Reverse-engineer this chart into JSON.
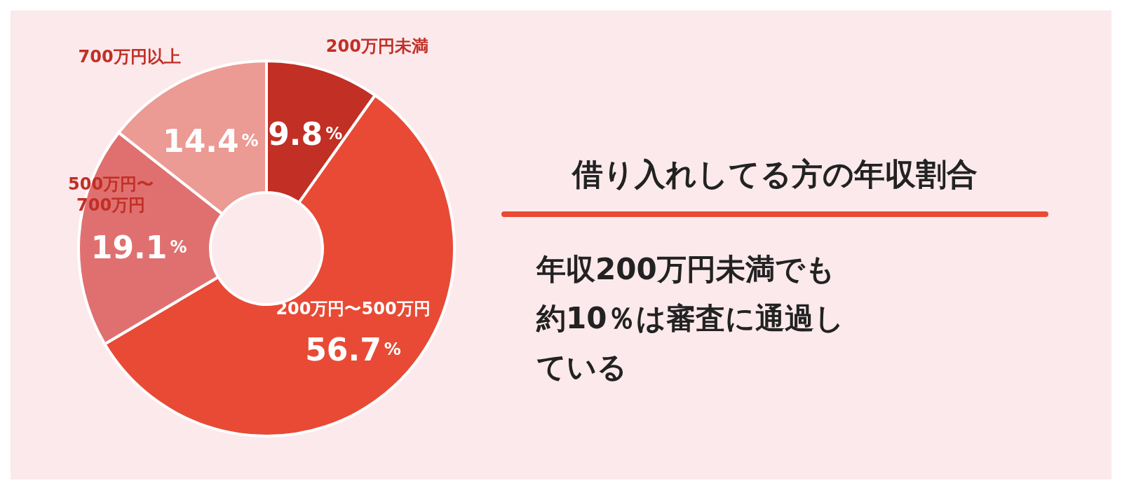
{
  "chart_data": {
    "type": "donut",
    "title": "借り入れしてる方の年収割合",
    "categories": [
      "200万円未満",
      "200万円〜500万円",
      "500万円〜700万円",
      "700万円以上"
    ],
    "values": [
      9.8,
      56.7,
      19.1,
      14.4
    ],
    "value_labels": [
      "9.8%",
      "56.7%",
      "19.1%",
      "14.4%"
    ],
    "colors": [
      "#c12f25",
      "#e84a35",
      "#e07070",
      "#eb9a94"
    ],
    "annotations": [
      "年収200万円未満でも約10％は審査に通過している"
    ]
  }
}
